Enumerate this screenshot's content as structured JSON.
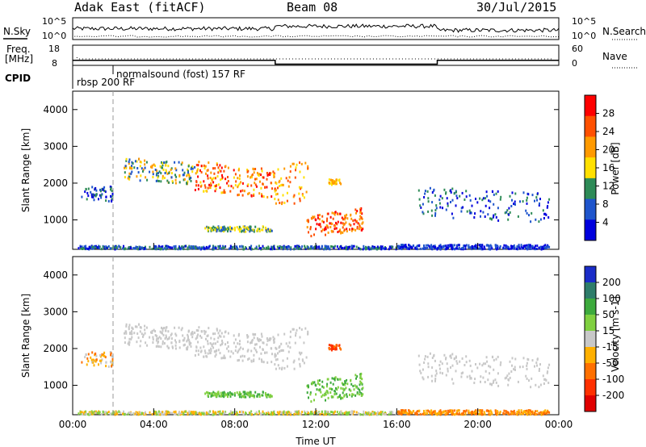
{
  "header": {
    "station": "Adak East (fitACF)",
    "beam": "Beam 08",
    "date": "30/Jul/2015"
  },
  "panels": {
    "nsky": {
      "left_label": "N.Sky",
      "left_ticks": [
        "10^5",
        "10^0"
      ],
      "right_label": "N.Search",
      "right_ticks": [
        "10^5",
        "10^0"
      ]
    },
    "freq": {
      "left_label_1": "Freq.",
      "left_label_2": "[MHz]",
      "left_ticks": [
        "18",
        "8"
      ],
      "right_label": "Nave",
      "right_ticks": [
        "60",
        "0"
      ],
      "freq_mhz": [
        {
          "t": 0.0,
          "v": 10.5
        },
        {
          "t": 10.0,
          "v": 10.5
        },
        {
          "t": 10.0,
          "v": 8.6
        },
        {
          "t": 18.0,
          "v": 8.6
        },
        {
          "t": 18.0,
          "v": 10.5
        },
        {
          "t": 24.0,
          "v": 10.5
        }
      ]
    },
    "cpid": {
      "label": "CPID",
      "mode_1": "rbsp 200 RF",
      "mode_2": "normalsound (fost) 157 RF",
      "mode_2_start_hour": 1.8
    }
  },
  "chart_data": [
    {
      "type": "heatmap",
      "name": "power",
      "ylabel": "Slant Range [km]",
      "xlabel": "",
      "ylim": [
        200,
        4500
      ],
      "xlim": [
        0,
        24
      ],
      "yticks": [
        1000,
        2000,
        3000,
        4000
      ],
      "colorbar": {
        "label": "Power [dB]",
        "ticks": [
          "28",
          "24",
          "20",
          "16",
          "12",
          "8",
          "4"
        ],
        "colors": [
          "#ff0000",
          "#ff5000",
          "#ff9a00",
          "#ffe000",
          "#2e8b57",
          "#1f55cc",
          "#0000dd"
        ]
      }
    },
    {
      "type": "heatmap",
      "name": "velocity",
      "ylabel": "Slant Range [km]",
      "xlabel": "Time UT",
      "ylim": [
        200,
        4500
      ],
      "xlim": [
        0,
        24
      ],
      "yticks": [
        1000,
        2000,
        3000,
        4000
      ],
      "xticks": [
        "00:00",
        "04:00",
        "08:00",
        "12:00",
        "16:00",
        "20:00",
        "00:00"
      ],
      "colorbar": {
        "label": "Velocity [m s-1]",
        "ticks": [
          "200",
          "100",
          "50",
          "15",
          "-15",
          "-50",
          "-100",
          "-200"
        ],
        "colors": [
          "#1a2cc8",
          "#2e7d6a",
          "#3daa3d",
          "#80d040",
          "#c8c8c8",
          "#ffb000",
          "#ff7000",
          "#ff3000",
          "#e00000"
        ]
      }
    }
  ]
}
